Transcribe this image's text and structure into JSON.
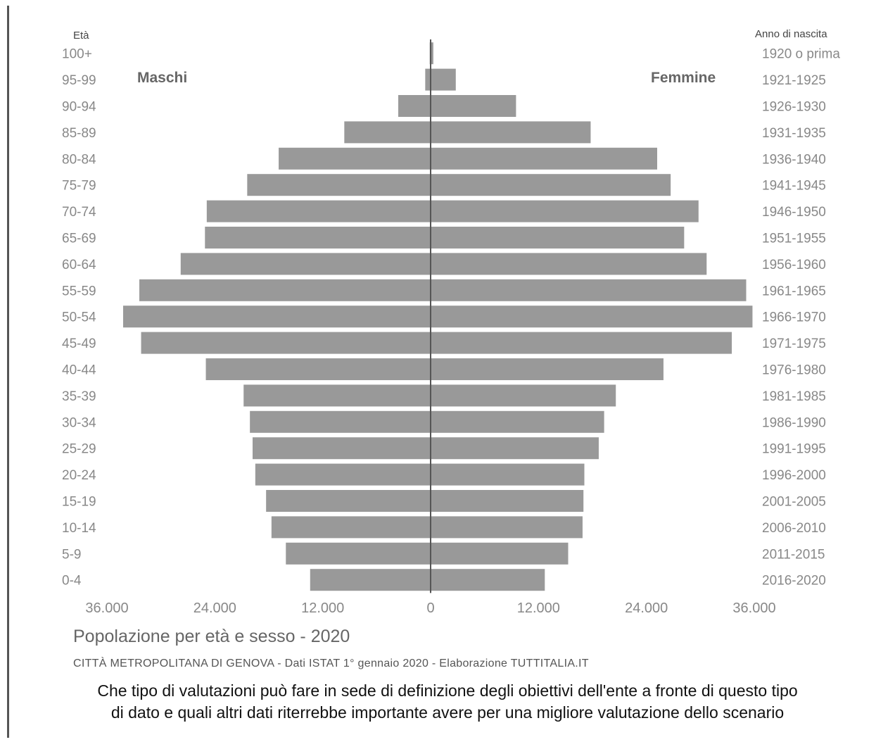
{
  "chart_data": {
    "type": "bar",
    "orientation": "horizontal-pyramid",
    "title": "Popolazione per età e sesso - 2020",
    "source": "CITTÀ METROPOLITANA DI GENOVA - Dati ISTAT 1° gennaio 2020 - Elaborazione TUTTITALIA.IT",
    "ylabel_left": "Età",
    "ylabel_right": "Anno di nascita",
    "categories": [
      "100+",
      "95-99",
      "90-94",
      "85-89",
      "80-84",
      "75-79",
      "70-74",
      "65-69",
      "60-64",
      "55-59",
      "50-54",
      "45-49",
      "40-44",
      "35-39",
      "30-34",
      "25-29",
      "20-24",
      "15-19",
      "10-14",
      "5-9",
      "0-4"
    ],
    "birth_years": [
      "1920 o prima",
      "1921-1925",
      "1926-1930",
      "1931-1935",
      "1936-1940",
      "1941-1945",
      "1946-1950",
      "1951-1955",
      "1956-1960",
      "1961-1965",
      "1966-1970",
      "1971-1975",
      "1976-1980",
      "1981-1985",
      "1986-1990",
      "1991-1995",
      "1996-2000",
      "2001-2005",
      "2006-2010",
      "2011-2015",
      "2016-2020"
    ],
    "series": [
      {
        "name": "Maschi",
        "values": [
          100,
          600,
          3600,
          9600,
          16900,
          20400,
          24900,
          25100,
          27800,
          32400,
          34200,
          32200,
          25000,
          20800,
          20100,
          19800,
          19500,
          18300,
          17700,
          16100,
          13400
        ]
      },
      {
        "name": "Femmine",
        "values": [
          300,
          2800,
          9500,
          17800,
          25200,
          26700,
          29800,
          28200,
          30700,
          35100,
          35800,
          33500,
          25900,
          20600,
          19300,
          18700,
          17100,
          17000,
          16900,
          15300,
          12700
        ]
      }
    ],
    "xticks": [
      "36.000",
      "24.000",
      "12.000",
      "0",
      "12.000",
      "24.000",
      "36.000"
    ],
    "xlim": [
      -36000,
      36000
    ],
    "bar_color": "#999999",
    "grid": false,
    "legend": "none"
  },
  "question": {
    "line1": "Che tipo di valutazioni può fare in sede di definizione degli obiettivi dell'ente a fronte di questo tipo",
    "line2": "di dato e quali altri dati riterrebbe importante avere per una migliore valutazione dello scenario"
  }
}
